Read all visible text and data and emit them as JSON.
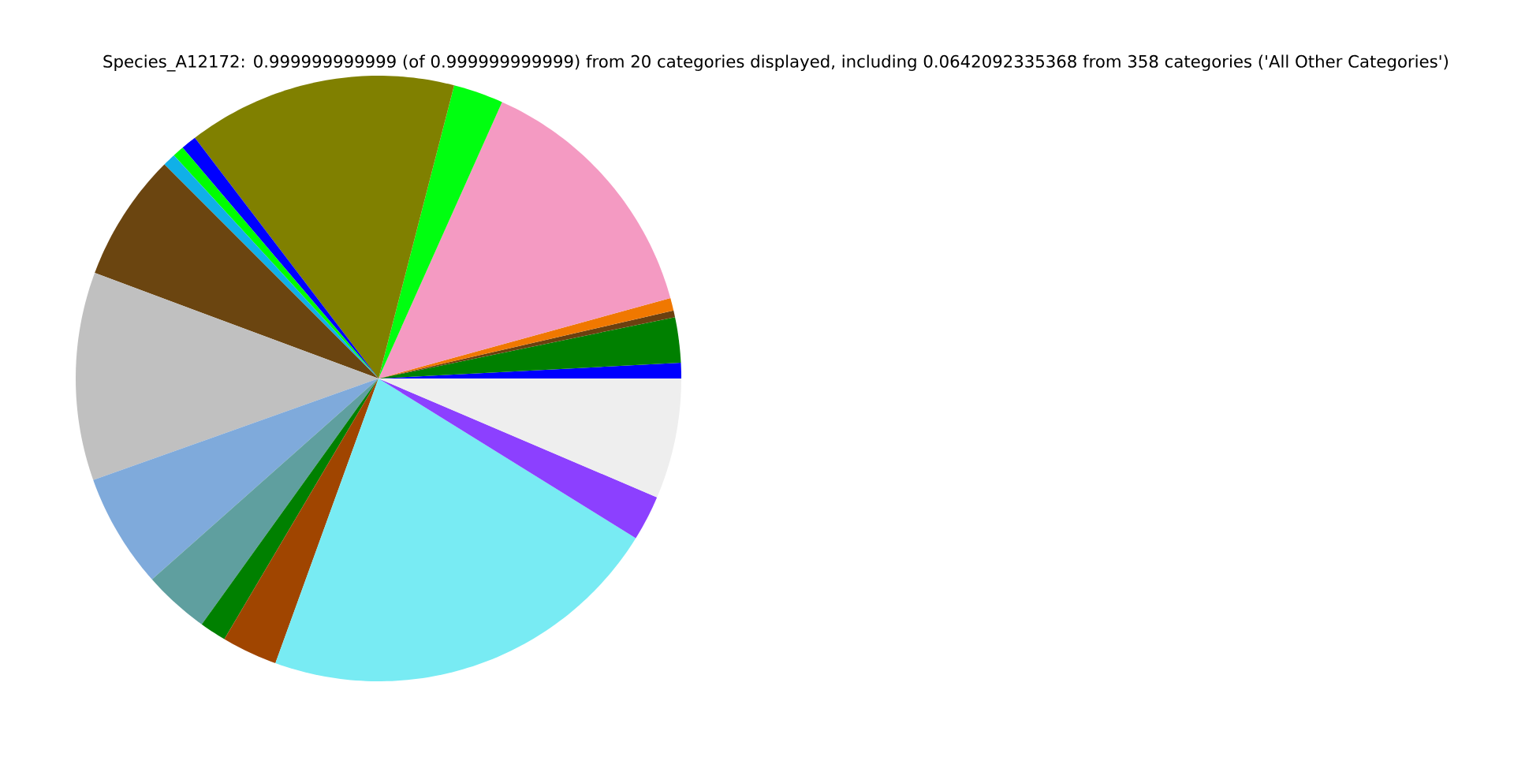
{
  "chart_data": {
    "type": "pie",
    "title": "Species_A12172: 0.999999999999 (of 0.999999999999) from 20 categories displayed, including 0.0642092335368 from 358 categories ('All Other Categories')",
    "categories": [
      null,
      null,
      null,
      null,
      null,
      null,
      null,
      null,
      null,
      null,
      null,
      null,
      null,
      null,
      null,
      null,
      null,
      null,
      null
    ],
    "values": [
      0.83,
      2.42,
      0.36,
      0.67,
      14.03,
      2.67,
      14.39,
      0.83,
      0.61,
      0.69,
      6.83,
      11.11,
      6.11,
      3.53,
      1.42,
      2.97,
      21.69,
      2.42,
      6.42
    ],
    "colors": [
      "#0000ff",
      "#008000",
      "#6b4010",
      "#f07800",
      "#f49ac2",
      "#00ff10",
      "#808000",
      "#0000ff",
      "#00ff00",
      "#10b0e8",
      "#6b4510",
      "#c0c0c0",
      "#7faadb",
      "#5f9f9f",
      "#008000",
      "#a04500",
      "#78ebf3",
      "#8c40ff",
      "#eeeeee"
    ]
  }
}
